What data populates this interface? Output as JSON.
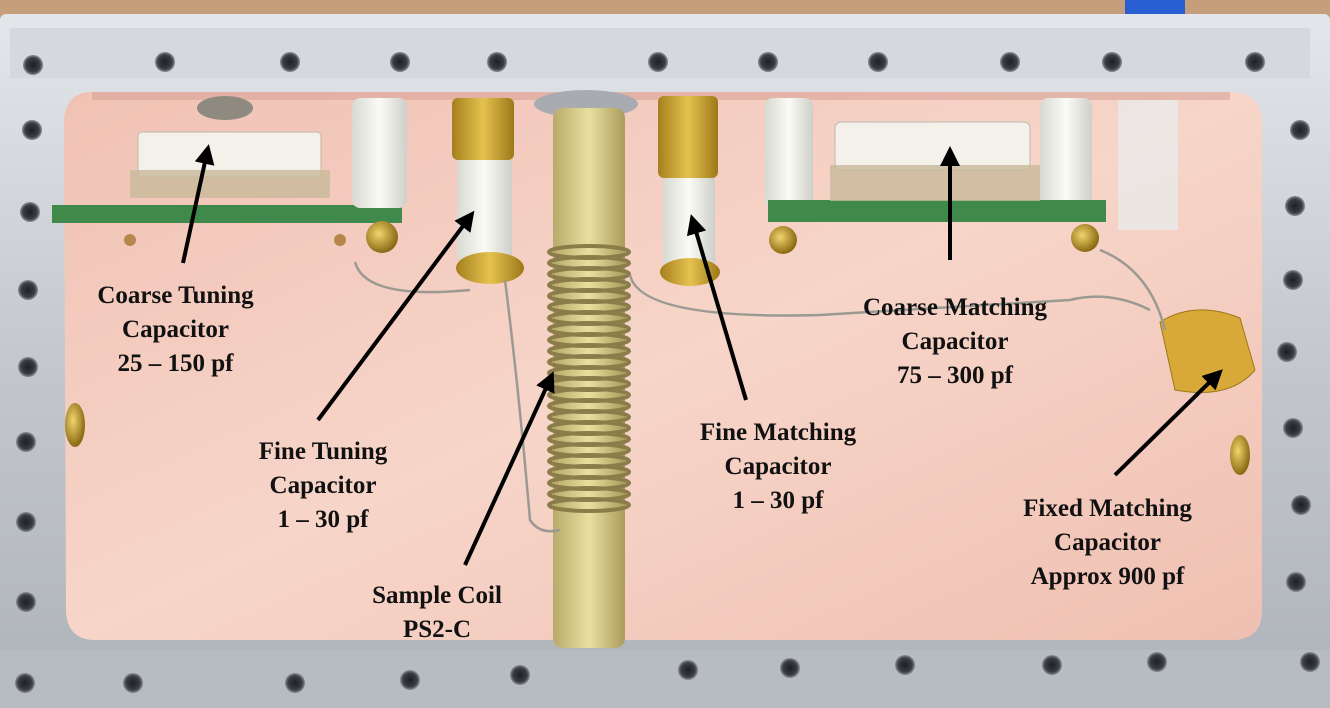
{
  "labels": {
    "coarse_tuning": {
      "line1": "Coarse Tuning",
      "line2": "Capacitor",
      "line3": "25 – 150 pf"
    },
    "fine_tuning": {
      "line1": "Fine Tuning",
      "line2": "Capacitor",
      "line3": "1 – 30 pf"
    },
    "sample_coil": {
      "line1": "Sample Coil",
      "line2": "PS2-C"
    },
    "fine_matching": {
      "line1": "Fine Matching",
      "line2": "Capacitor",
      "line3": "1 – 30 pf"
    },
    "coarse_matching": {
      "line1": "Coarse Matching",
      "line2": "Capacitor",
      "line3": "75 – 300 pf"
    },
    "fixed_matching": {
      "line1": "Fixed Matching",
      "line2": "Capacitor",
      "line3": "Approx 900 pf"
    }
  },
  "colors": {
    "frame": "#c8ccd0",
    "floor": "#f3c9bb",
    "pcb": "#3f8a4a",
    "brass": "#c9a22e",
    "coil": "#d8cc8c",
    "arrow": "#000000"
  }
}
